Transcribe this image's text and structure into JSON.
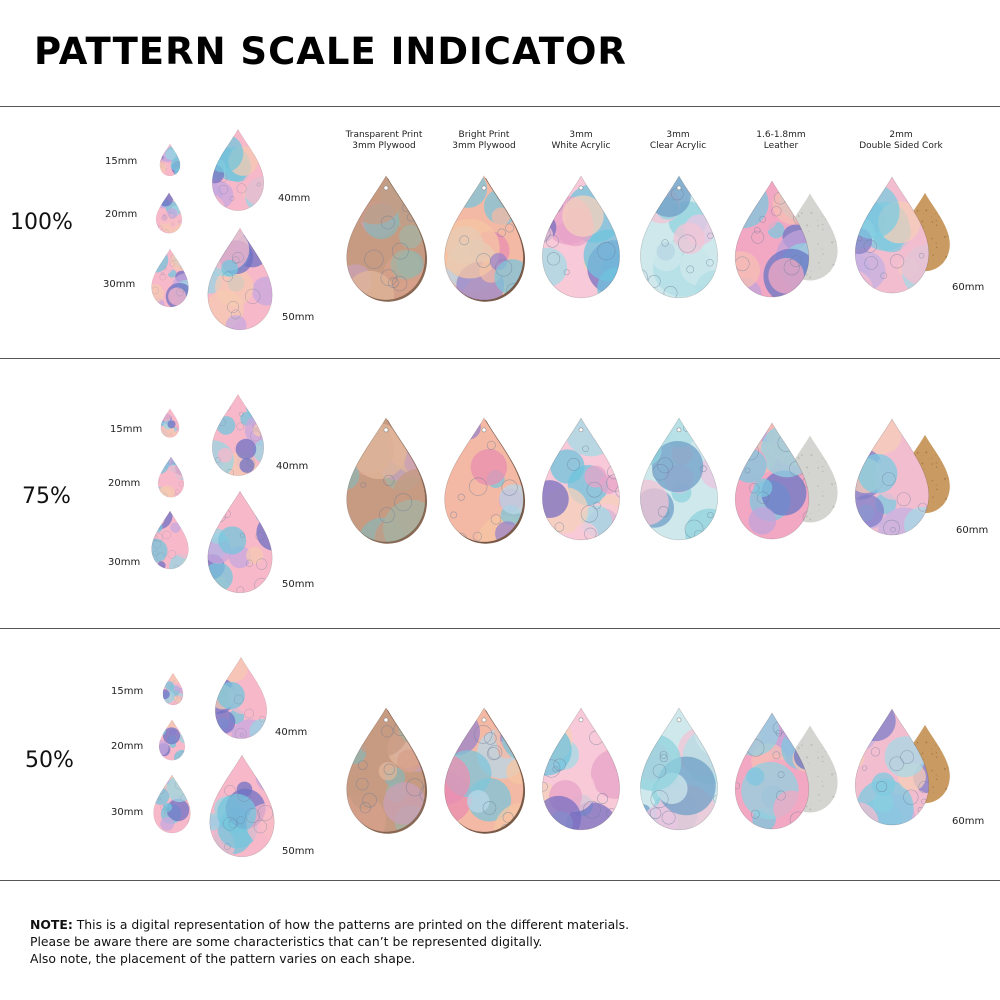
{
  "title": "PATTERN SCALE INDICATOR",
  "materials": [
    {
      "line1": "Transparent Print",
      "line2": "3mm Plywood"
    },
    {
      "line1": "Bright Print",
      "line2": "3mm Plywood"
    },
    {
      "line1": "3mm",
      "line2": "White Acrylic"
    },
    {
      "line1": "3mm",
      "line2": "Clear Acrylic"
    },
    {
      "line1": "1.6-1.8mm",
      "line2": "Leather"
    },
    {
      "line1": "2mm",
      "line2": "Double Sided Cork"
    }
  ],
  "sections": [
    {
      "scale": "100%",
      "sizes": {
        "s15": "15mm",
        "s20": "20mm",
        "s30": "30mm",
        "s40": "40mm",
        "s50": "50mm",
        "s60": "60mm"
      }
    },
    {
      "scale": "75%",
      "sizes": {
        "s15": "15mm",
        "s20": "20mm",
        "s30": "30mm",
        "s40": "40mm",
        "s50": "50mm",
        "s60": "60mm"
      }
    },
    {
      "scale": "50%",
      "sizes": {
        "s15": "15mm",
        "s20": "20mm",
        "s30": "30mm",
        "s40": "40mm",
        "s50": "50mm",
        "s60": "60mm"
      }
    }
  ],
  "note": {
    "label": "NOTE:",
    "line1": " This is a digital representation of how the patterns are printed on the different materials.",
    "line2": "Please be aware there are some characteristics that can’t be represented digitally.",
    "line3": "Also note, the placement of the pattern varies on each shape."
  }
}
